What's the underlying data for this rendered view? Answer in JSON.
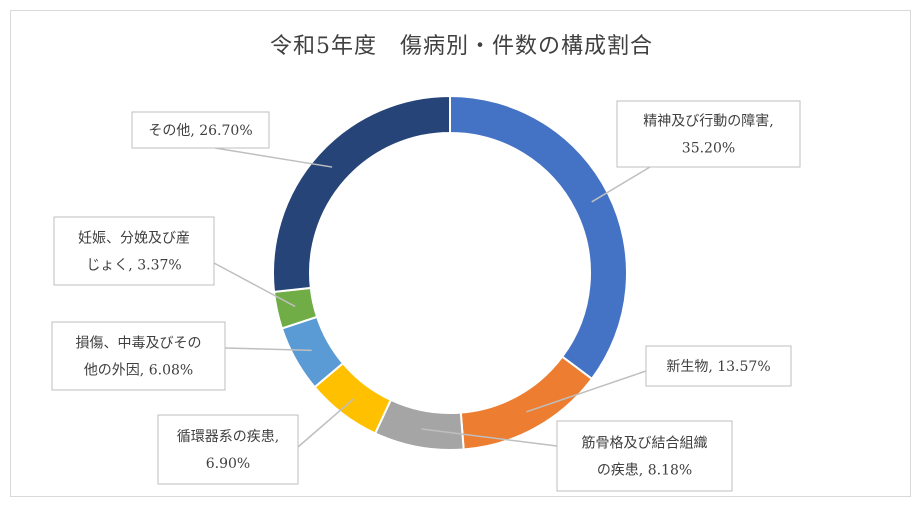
{
  "chart_data": {
    "type": "pie",
    "title": "令和5年度　傷病別・件数の構成割合",
    "categories": [
      "精神及び行動の障害",
      "新生物",
      "筋骨格及び結合組織の疾患",
      "循環器系の疾患",
      "損傷、中毒及びその他の外因",
      "妊娠、分娩及び産じょく",
      "その他"
    ],
    "values": [
      35.2,
      13.57,
      8.18,
      6.9,
      6.08,
      3.37,
      26.7
    ],
    "colors": [
      "#4472C4",
      "#ED7D31",
      "#A5A5A5",
      "#FFC000",
      "#5B9BD5",
      "#70AD47",
      "#264478"
    ],
    "data_labels": [
      [
        "精神及び行動の障害,",
        "35.20%"
      ],
      [
        "新生物, 13.57%"
      ],
      [
        "筋骨格及び結合組織",
        "の疾患, 8.18%"
      ],
      [
        "循環器系の疾患,",
        "6.90%"
      ],
      [
        "損傷、中毒及びその",
        "他の外因, 6.08%"
      ],
      [
        "妊娠、分娩及び産",
        "じょく, 3.37%"
      ],
      [
        "その他, 26.70%"
      ]
    ],
    "legend": "none"
  }
}
